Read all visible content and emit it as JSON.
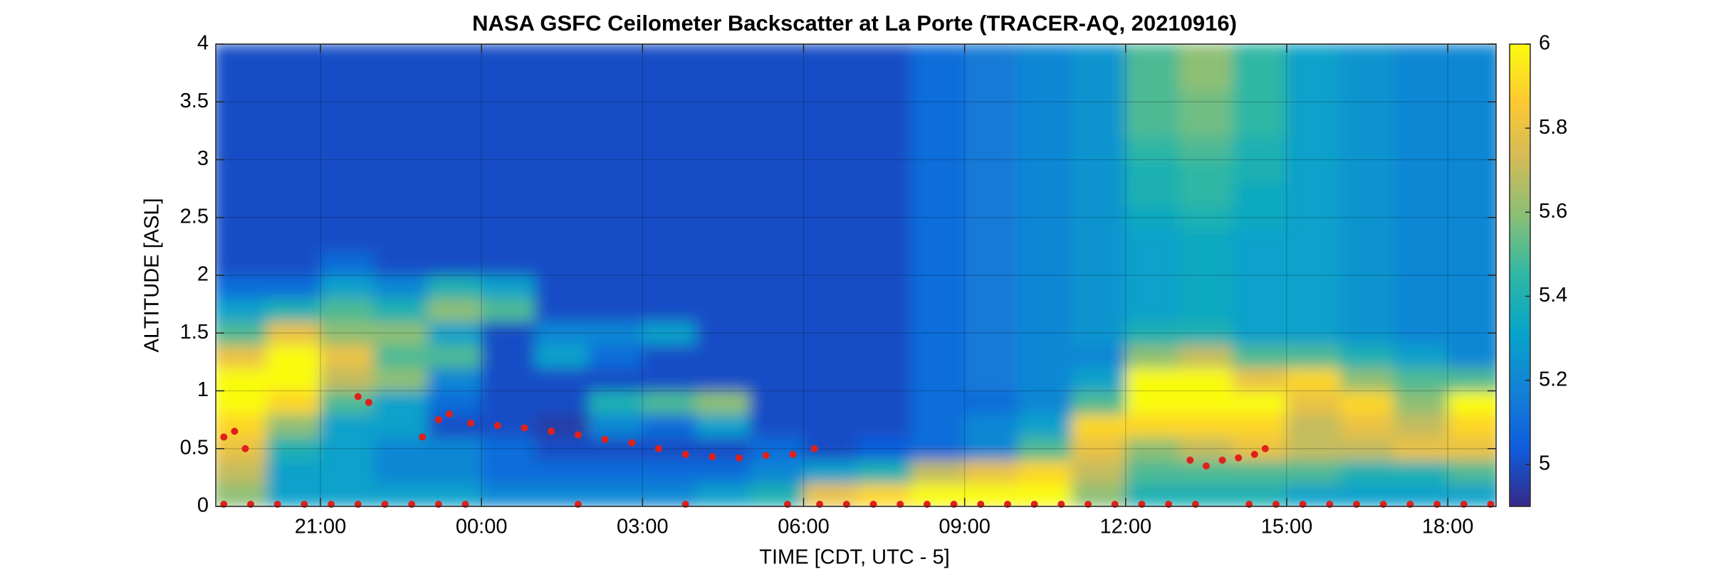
{
  "chart_data": {
    "type": "heatmap",
    "title": "NASA GSFC Ceilometer Backscatter at La Porte (TRACER-AQ, 20210916)",
    "xlabel": "TIME [CDT, UTC - 5]",
    "ylabel": "ALTITUDE [ASL]",
    "xlim": [
      19.05,
      42.9
    ],
    "xticks": [
      {
        "value": 21,
        "label": "21:00"
      },
      {
        "value": 24,
        "label": "00:00"
      },
      {
        "value": 27,
        "label": "03:00"
      },
      {
        "value": 30,
        "label": "06:00"
      },
      {
        "value": 33,
        "label": "09:00"
      },
      {
        "value": 36,
        "label": "12:00"
      },
      {
        "value": 39,
        "label": "15:00"
      },
      {
        "value": 42,
        "label": "18:00"
      }
    ],
    "ylim": [
      0,
      4
    ],
    "yticks": [
      0,
      0.5,
      1,
      1.5,
      2,
      2.5,
      3,
      3.5,
      4
    ],
    "grid": true,
    "clim": [
      4.9,
      6
    ],
    "cticks": [
      5,
      5.2,
      5.4,
      5.6,
      5.8,
      6
    ],
    "colormap": [
      "#352a87",
      "#0f5cdd",
      "#1481d6",
      "#06a4ca",
      "#2eb7a4",
      "#87bf77",
      "#d1bb59",
      "#fec832",
      "#f9fb0e"
    ],
    "x": [
      19.5,
      20.5,
      21.5,
      22.5,
      23.5,
      24.5,
      25.5,
      26.5,
      27.5,
      28.5,
      29.5,
      30.5,
      31.5,
      32.5,
      33.5,
      34.5,
      35.5,
      36.5,
      37.5,
      38.5,
      39.5,
      40.5,
      41.5,
      42.5
    ],
    "y": [
      0.1,
      0.3,
      0.5,
      0.7,
      0.9,
      1.1,
      1.3,
      1.5,
      1.7,
      1.9,
      2.1,
      2.3,
      2.5,
      2.7,
      2.9,
      3.1,
      3.3,
      3.5,
      3.7,
      3.9
    ],
    "z": [
      [
        5.6,
        5.7,
        5.8,
        5.9,
        6,
        6,
        5.8,
        5.5,
        5.3,
        5.1,
        5,
        5,
        5,
        5,
        5,
        5,
        5,
        5,
        5,
        5
      ],
      [
        5.3,
        5.3,
        5.4,
        5.6,
        5.9,
        6,
        6,
        5.8,
        5.4,
        5.1,
        5,
        5,
        5,
        5,
        5,
        5,
        5,
        5,
        5,
        5
      ],
      [
        5.3,
        5.3,
        5.3,
        5.3,
        5.5,
        5.7,
        5.8,
        5.6,
        5.5,
        5.3,
        5.1,
        5,
        5,
        5,
        5,
        5,
        5,
        5,
        5,
        5
      ],
      [
        5.3,
        5.2,
        5.2,
        5.3,
        5.3,
        5.6,
        5.5,
        5.6,
        5.4,
        5.2,
        5,
        5,
        5,
        5,
        5,
        5,
        5,
        5,
        5,
        5
      ],
      [
        5.3,
        5.2,
        5.2,
        5,
        5.1,
        5.2,
        5.5,
        5.3,
        5.6,
        5.4,
        5,
        5,
        5,
        5,
        5,
        5,
        5,
        5,
        5,
        5
      ],
      [
        5.2,
        5.1,
        5.1,
        5,
        5,
        5,
        5,
        5,
        5.5,
        5.3,
        5,
        5,
        5,
        5,
        5,
        5,
        5,
        5,
        5,
        5
      ],
      [
        5.2,
        5.1,
        5,
        4.95,
        5,
        5,
        5.3,
        5.2,
        5,
        5,
        5,
        5,
        5,
        5,
        5,
        5,
        5,
        5,
        5,
        5
      ],
      [
        5.2,
        5.1,
        5,
        5.2,
        5.4,
        5,
        5.1,
        5.2,
        5,
        5,
        5,
        5,
        5,
        5,
        5,
        5,
        5,
        5,
        5,
        5
      ],
      [
        5.2,
        5.1,
        5,
        5.1,
        5.5,
        5,
        5,
        5.3,
        5,
        5,
        5,
        5,
        5,
        5,
        5,
        5,
        5,
        5,
        5,
        5
      ],
      [
        5.3,
        5.1,
        5,
        5.3,
        5.6,
        5,
        5,
        5,
        5,
        5,
        5,
        5,
        5,
        5,
        5,
        5,
        5,
        5,
        5,
        5
      ],
      [
        5.4,
        5.2,
        5.1,
        5,
        5,
        5,
        5,
        5,
        5,
        5,
        5,
        5,
        5,
        5,
        5,
        5,
        5,
        5,
        5,
        5
      ],
      [
        5.8,
        5.3,
        5,
        5,
        5,
        5,
        5,
        5,
        5,
        5,
        5,
        5,
        5,
        5,
        5,
        5,
        5,
        5,
        5,
        5
      ],
      [
        5.9,
        5.4,
        5.05,
        5,
        5,
        5,
        5,
        5,
        5,
        5,
        5,
        5,
        5,
        5,
        5,
        5,
        5,
        5,
        5,
        5
      ],
      [
        6,
        5.7,
        5.1,
        5.1,
        5.1,
        5.1,
        5.1,
        5.1,
        5.1,
        5.1,
        5.1,
        5.1,
        5.1,
        5.1,
        5.1,
        5.1,
        5.1,
        5.1,
        5.1,
        5.1
      ],
      [
        6,
        5.8,
        5.2,
        5.2,
        5.1,
        5.15,
        5.15,
        5.15,
        5.15,
        5.15,
        5.15,
        5.15,
        5.15,
        5.15,
        5.15,
        5.15,
        5.15,
        5.15,
        5.15,
        5.15
      ],
      [
        6,
        5.9,
        5.5,
        5.3,
        5.2,
        5.2,
        5.2,
        5.2,
        5.2,
        5.2,
        5.2,
        5.2,
        5.2,
        5.2,
        5.2,
        5.2,
        5.2,
        5.2,
        5.2,
        5.2
      ],
      [
        5.6,
        5.7,
        5.8,
        5.9,
        5.5,
        5.3,
        5.2,
        5.25,
        5.25,
        5.25,
        5.25,
        5.25,
        5.25,
        5.25,
        5.25,
        5.25,
        5.25,
        5.25,
        5.25,
        5.25
      ],
      [
        5.4,
        5.5,
        5.6,
        5.9,
        6,
        6,
        5.6,
        5.4,
        5.3,
        5.3,
        5.3,
        5.3,
        5.35,
        5.4,
        5.4,
        5.45,
        5.5,
        5.5,
        5.5,
        5.5
      ],
      [
        5.4,
        5.5,
        5.7,
        5.9,
        6,
        6,
        5.7,
        5.4,
        5.35,
        5.35,
        5.35,
        5.35,
        5.4,
        5.45,
        5.45,
        5.5,
        5.55,
        5.55,
        5.6,
        5.6
      ],
      [
        5.4,
        5.5,
        5.8,
        5.9,
        6,
        5.8,
        5.5,
        5.3,
        5.3,
        5.3,
        5.3,
        5.3,
        5.35,
        5.35,
        5.4,
        5.4,
        5.45,
        5.45,
        5.45,
        5.45
      ],
      [
        5.3,
        5.5,
        5.7,
        5.7,
        5.8,
        5.9,
        5.5,
        5.3,
        5.3,
        5.3,
        5.3,
        5.3,
        5.3,
        5.3,
        5.3,
        5.3,
        5.3,
        5.3,
        5.3,
        5.3
      ],
      [
        5.3,
        5.4,
        5.7,
        5.8,
        5.9,
        5.6,
        5.4,
        5.25,
        5.25,
        5.25,
        5.25,
        5.25,
        5.25,
        5.25,
        5.25,
        5.25,
        5.25,
        5.25,
        5.25,
        5.25
      ],
      [
        5.3,
        5.4,
        5.8,
        5.7,
        5.6,
        5.5,
        5.3,
        5.2,
        5.2,
        5.2,
        5.2,
        5.2,
        5.2,
        5.2,
        5.2,
        5.2,
        5.2,
        5.2,
        5.2,
        5.2
      ],
      [
        5.3,
        5.5,
        5.8,
        5.9,
        6,
        5.5,
        5.2,
        5.2,
        5.2,
        5.2,
        5.2,
        5.2,
        5.2,
        5.2,
        5.2,
        5.2,
        5.2,
        5.2,
        5.2,
        5.2
      ]
    ],
    "points": [
      {
        "color": "#e0201b",
        "x": [
          19.2,
          19.4,
          19.6,
          21.7,
          21.9,
          22.9,
          23.2,
          23.4,
          23.8,
          24.3,
          24.8,
          25.3,
          25.8,
          26.3,
          26.8,
          27.3,
          27.8,
          28.3,
          28.8,
          29.3,
          29.8,
          30.2,
          37.2,
          37.5,
          37.8,
          38.1,
          38.4,
          38.6
        ],
        "y": [
          0.6,
          0.65,
          0.5,
          0.95,
          0.9,
          0.6,
          0.75,
          0.8,
          0.72,
          0.7,
          0.68,
          0.65,
          0.62,
          0.58,
          0.55,
          0.5,
          0.45,
          0.43,
          0.42,
          0.44,
          0.45,
          0.5,
          0.4,
          0.35,
          0.4,
          0.42,
          0.45,
          0.5
        ]
      },
      {
        "color": "#e0201b",
        "x": [
          19.2,
          19.7,
          20.2,
          20.7,
          21.2,
          21.7,
          22.2,
          22.7,
          23.2,
          23.7,
          25.8,
          27.8,
          29.7,
          30.3,
          30.8,
          31.3,
          31.8,
          32.3,
          32.8,
          33.3,
          33.8,
          34.3,
          34.8,
          35.3,
          35.8,
          36.3,
          36.8,
          37.3,
          38.3,
          38.8,
          39.3,
          39.8,
          40.3,
          40.8,
          41.3,
          41.8,
          42.3,
          42.8
        ],
        "y": [
          0,
          0,
          0,
          0,
          0,
          0,
          0,
          0,
          0,
          0,
          0,
          0,
          0,
          0,
          0,
          0,
          0,
          0,
          0,
          0,
          0,
          0,
          0,
          0,
          0,
          0,
          0,
          0,
          0,
          0,
          0,
          0,
          0,
          0,
          0,
          0,
          0,
          0
        ]
      }
    ]
  }
}
